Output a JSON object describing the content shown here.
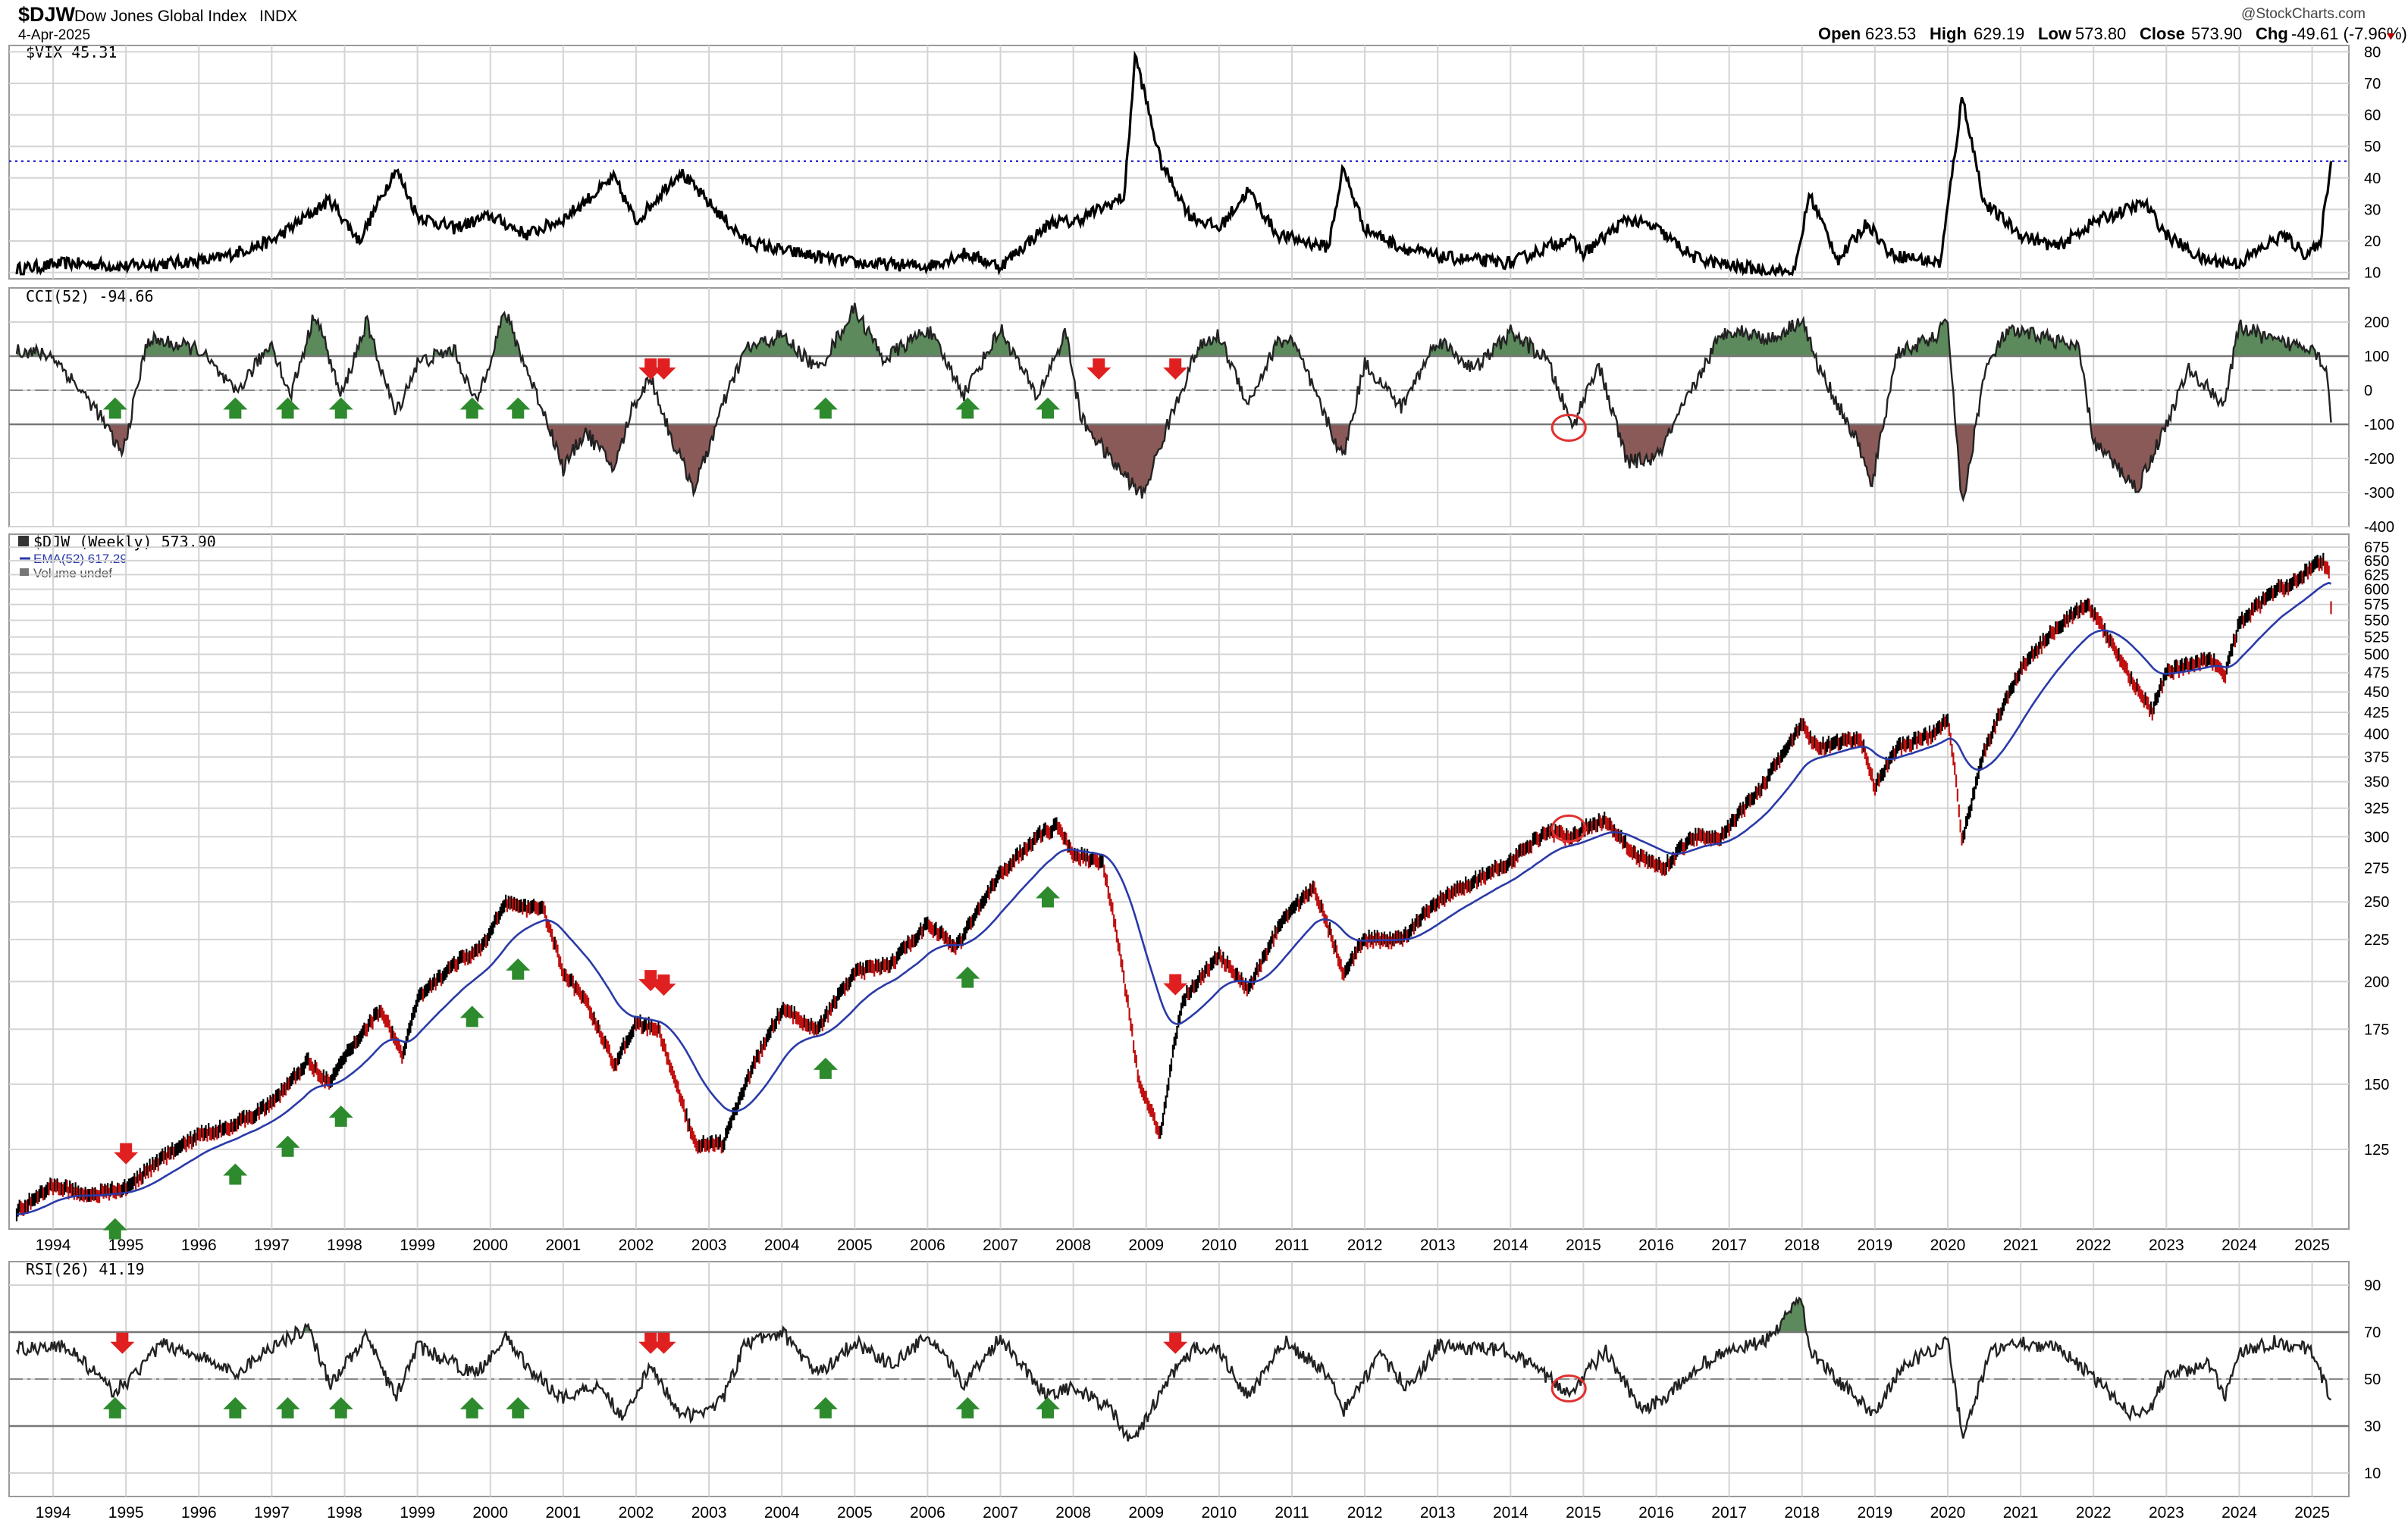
{
  "header": {
    "symbol": "$DJW",
    "name": "Dow Jones Global Index",
    "exchange": "INDX",
    "date": "4-Apr-2025",
    "brand": "@StockCharts.com",
    "quote": {
      "open_label": "Open",
      "open": "623.53",
      "high_label": "High",
      "high": "629.19",
      "low_label": "Low",
      "low": "573.80",
      "close_label": "Close",
      "close": "573.90",
      "chg_label": "Chg",
      "chg": "-49.61 (-7.96%)"
    }
  },
  "colors": {
    "grid": "#d4d4d4",
    "frame": "#9a9a9a",
    "price": "#000000",
    "ema": "#2a3aa8",
    "cci_pos_fill": "#5c8a5c",
    "cci_neg_fill": "#8a5a58",
    "rsi_fill": "#5c8a5c",
    "arrow_up": "#2d8a2d",
    "arrow_down": "#e02020",
    "circle": "#e03030",
    "vix_level": "#3030d0"
  },
  "chart_data": [
    {
      "id": "vix",
      "type": "line",
      "legend": "$VIX 45.31",
      "ylim": [
        8,
        82
      ],
      "yticks": [
        10,
        20,
        30,
        40,
        50,
        60,
        70,
        80
      ],
      "reference_line": 45.31,
      "anchors": [
        [
          1993.5,
          11
        ],
        [
          1994.2,
          13
        ],
        [
          1995.0,
          12
        ],
        [
          1996.2,
          14
        ],
        [
          1997.0,
          20
        ],
        [
          1997.8,
          33
        ],
        [
          1998.2,
          20
        ],
        [
          1998.7,
          43
        ],
        [
          1999.0,
          28
        ],
        [
          1999.5,
          24
        ],
        [
          2000.0,
          28
        ],
        [
          2000.5,
          22
        ],
        [
          2001.0,
          27
        ],
        [
          2001.7,
          40
        ],
        [
          2002.0,
          26
        ],
        [
          2002.6,
          42
        ],
        [
          2003.0,
          32
        ],
        [
          2003.5,
          20
        ],
        [
          2004.0,
          17
        ],
        [
          2005.0,
          13
        ],
        [
          2006.0,
          12
        ],
        [
          2006.5,
          16
        ],
        [
          2007.0,
          12
        ],
        [
          2007.7,
          26
        ],
        [
          2008.0,
          26
        ],
        [
          2008.7,
          34
        ],
        [
          2008.85,
          79
        ],
        [
          2009.2,
          45
        ],
        [
          2009.6,
          28
        ],
        [
          2010.0,
          24
        ],
        [
          2010.4,
          36
        ],
        [
          2010.8,
          22
        ],
        [
          2011.5,
          18
        ],
        [
          2011.7,
          43
        ],
        [
          2012.0,
          24
        ],
        [
          2012.5,
          18
        ],
        [
          2013.0,
          15
        ],
        [
          2014.0,
          13
        ],
        [
          2014.8,
          21
        ],
        [
          2015.0,
          16
        ],
        [
          2015.6,
          27
        ],
        [
          2016.0,
          24
        ],
        [
          2016.5,
          15
        ],
        [
          2017.0,
          12
        ],
        [
          2017.9,
          10
        ],
        [
          2018.1,
          35
        ],
        [
          2018.5,
          14
        ],
        [
          2018.9,
          26
        ],
        [
          2019.2,
          16
        ],
        [
          2019.9,
          13
        ],
        [
          2020.2,
          66
        ],
        [
          2020.5,
          32
        ],
        [
          2021.0,
          22
        ],
        [
          2021.5,
          18
        ],
        [
          2022.0,
          26
        ],
        [
          2022.7,
          32
        ],
        [
          2023.0,
          22
        ],
        [
          2023.5,
          14
        ],
        [
          2024.0,
          13
        ],
        [
          2024.6,
          22
        ],
        [
          2024.9,
          16
        ],
        [
          2025.1,
          18
        ],
        [
          2025.26,
          45.31
        ]
      ]
    },
    {
      "id": "cci",
      "type": "line",
      "legend": "CCI(52) -94.66",
      "ylim": [
        -400,
        300
      ],
      "yticks": [
        200,
        100,
        0,
        -100,
        -200,
        -300,
        -400
      ],
      "overbought": 100,
      "oversold": -100,
      "anchors": [
        [
          1993.5,
          120
        ],
        [
          1994.0,
          100
        ],
        [
          1994.6,
          -60
        ],
        [
          1994.95,
          -190
        ],
        [
          1995.3,
          150
        ],
        [
          1996.0,
          120
        ],
        [
          1996.5,
          -10
        ],
        [
          1997.0,
          140
        ],
        [
          1997.25,
          -20
        ],
        [
          1997.6,
          230
        ],
        [
          1997.95,
          -20
        ],
        [
          1998.3,
          200
        ],
        [
          1998.7,
          -70
        ],
        [
          1999.0,
          80
        ],
        [
          1999.5,
          120
        ],
        [
          1999.8,
          -40
        ],
        [
          2000.2,
          230
        ],
        [
          2000.5,
          60
        ],
        [
          2000.8,
          -100
        ],
        [
          2001.0,
          -230
        ],
        [
          2001.3,
          -120
        ],
        [
          2001.7,
          -230
        ],
        [
          2001.95,
          -50
        ],
        [
          2002.2,
          40
        ],
        [
          2002.5,
          -150
        ],
        [
          2002.8,
          -290
        ],
        [
          2003.2,
          -40
        ],
        [
          2003.5,
          120
        ],
        [
          2004.0,
          160
        ],
        [
          2004.5,
          60
        ],
        [
          2005.0,
          240
        ],
        [
          2005.4,
          90
        ],
        [
          2006.0,
          180
        ],
        [
          2006.5,
          -10
        ],
        [
          2007.0,
          180
        ],
        [
          2007.5,
          -20
        ],
        [
          2007.9,
          170
        ],
        [
          2008.1,
          -80
        ],
        [
          2008.5,
          -200
        ],
        [
          2008.95,
          -310
        ],
        [
          2009.3,
          -100
        ],
        [
          2009.7,
          120
        ],
        [
          2010.0,
          160
        ],
        [
          2010.4,
          -40
        ],
        [
          2010.8,
          140
        ],
        [
          2011.0,
          150
        ],
        [
          2011.7,
          -200
        ],
        [
          2012.0,
          80
        ],
        [
          2012.5,
          -50
        ],
        [
          2013.0,
          150
        ],
        [
          2013.5,
          60
        ],
        [
          2014.0,
          170
        ],
        [
          2014.5,
          90
        ],
        [
          2014.85,
          -110
        ],
        [
          2015.2,
          80
        ],
        [
          2015.6,
          -210
        ],
        [
          2016.0,
          -200
        ],
        [
          2016.3,
          -80
        ],
        [
          2016.8,
          130
        ],
        [
          2017.0,
          180
        ],
        [
          2017.6,
          150
        ],
        [
          2018.0,
          210
        ],
        [
          2018.2,
          80
        ],
        [
          2018.8,
          -170
        ],
        [
          2018.95,
          -290
        ],
        [
          2019.3,
          110
        ],
        [
          2019.8,
          150
        ],
        [
          2020.0,
          200
        ],
        [
          2020.2,
          -350
        ],
        [
          2020.5,
          50
        ],
        [
          2020.8,
          170
        ],
        [
          2021.3,
          160
        ],
        [
          2021.8,
          120
        ],
        [
          2022.0,
          -150
        ],
        [
          2022.6,
          -290
        ],
        [
          2023.0,
          -100
        ],
        [
          2023.3,
          60
        ],
        [
          2023.8,
          -40
        ],
        [
          2024.0,
          190
        ],
        [
          2024.5,
          140
        ],
        [
          2025.0,
          130
        ],
        [
          2025.2,
          60
        ],
        [
          2025.26,
          -94.66
        ]
      ]
    },
    {
      "id": "price",
      "type": "line",
      "legend": "$DJW (Weekly) 573.90",
      "legend_ema": "EMA(52) 617.29",
      "legend_volume": "Volume undef",
      "scale": "log",
      "ylim": [
        100,
        700
      ],
      "yticks": [
        125,
        150,
        175,
        200,
        225,
        250,
        275,
        300,
        325,
        350,
        375,
        400,
        425,
        450,
        475,
        500,
        525,
        550,
        575,
        600,
        625,
        650,
        675
      ],
      "xlim": [
        1993.5,
        2025.4
      ],
      "xticks": [
        "1994",
        "1995",
        "1996",
        "1997",
        "1998",
        "1999",
        "2000",
        "2001",
        "2002",
        "2003",
        "2004",
        "2005",
        "2006",
        "2007",
        "2008",
        "2009",
        "2010",
        "2011",
        "2012",
        "2013",
        "2014",
        "2015",
        "2016",
        "2017",
        "2018",
        "2019",
        "2020",
        "2021",
        "2022",
        "2023",
        "2024",
        "2025"
      ],
      "anchors": [
        [
          1993.5,
          105
        ],
        [
          1994.0,
          113
        ],
        [
          1994.5,
          110
        ],
        [
          1995.0,
          112
        ],
        [
          1995.5,
          122
        ],
        [
          1996.0,
          130
        ],
        [
          1996.5,
          134
        ],
        [
          1997.0,
          142
        ],
        [
          1997.5,
          160
        ],
        [
          1997.8,
          150
        ],
        [
          1998.0,
          162
        ],
        [
          1998.5,
          185
        ],
        [
          1998.8,
          162
        ],
        [
          1999.0,
          190
        ],
        [
          1999.5,
          210
        ],
        [
          1999.9,
          220
        ],
        [
          2000.2,
          250
        ],
        [
          2000.5,
          245
        ],
        [
          2000.7,
          248
        ],
        [
          2001.0,
          205
        ],
        [
          2001.3,
          190
        ],
        [
          2001.7,
          158
        ],
        [
          2002.0,
          178
        ],
        [
          2002.3,
          175
        ],
        [
          2002.6,
          145
        ],
        [
          2002.8,
          127
        ],
        [
          2003.2,
          127
        ],
        [
          2003.5,
          150
        ],
        [
          2004.0,
          185
        ],
        [
          2004.5,
          175
        ],
        [
          2005.0,
          205
        ],
        [
          2005.5,
          210
        ],
        [
          2006.0,
          235
        ],
        [
          2006.4,
          220
        ],
        [
          2007.0,
          270
        ],
        [
          2007.5,
          300
        ],
        [
          2007.8,
          310
        ],
        [
          2008.0,
          285
        ],
        [
          2008.4,
          280
        ],
        [
          2008.7,
          200
        ],
        [
          2008.9,
          150
        ],
        [
          2009.2,
          130
        ],
        [
          2009.5,
          190
        ],
        [
          2010.0,
          215
        ],
        [
          2010.4,
          195
        ],
        [
          2010.9,
          240
        ],
        [
          2011.3,
          260
        ],
        [
          2011.7,
          205
        ],
        [
          2012.0,
          225
        ],
        [
          2012.5,
          225
        ],
        [
          2013.0,
          250
        ],
        [
          2013.5,
          265
        ],
        [
          2014.0,
          280
        ],
        [
          2014.5,
          305
        ],
        [
          2014.8,
          300
        ],
        [
          2015.3,
          315
        ],
        [
          2015.7,
          285
        ],
        [
          2016.1,
          275
        ],
        [
          2016.5,
          300
        ],
        [
          2016.9,
          300
        ],
        [
          2017.5,
          350
        ],
        [
          2018.0,
          410
        ],
        [
          2018.2,
          385
        ],
        [
          2018.8,
          395
        ],
        [
          2019.0,
          345
        ],
        [
          2019.3,
          385
        ],
        [
          2019.8,
          400
        ],
        [
          2020.0,
          420
        ],
        [
          2020.2,
          295
        ],
        [
          2020.5,
          380
        ],
        [
          2021.0,
          480
        ],
        [
          2021.5,
          540
        ],
        [
          2021.9,
          575
        ],
        [
          2022.0,
          560
        ],
        [
          2022.5,
          470
        ],
        [
          2022.8,
          425
        ],
        [
          2023.0,
          475
        ],
        [
          2023.6,
          495
        ],
        [
          2023.8,
          470
        ],
        [
          2024.0,
          545
        ],
        [
          2024.5,
          600
        ],
        [
          2024.7,
          605
        ],
        [
          2025.0,
          640
        ],
        [
          2025.15,
          650
        ],
        [
          2025.24,
          623
        ],
        [
          2025.26,
          573.9
        ]
      ]
    },
    {
      "id": "rsi",
      "type": "line",
      "legend": "RSI(26) 41.19",
      "ylim": [
        0,
        100
      ],
      "yticks": [
        10,
        30,
        50,
        70,
        90
      ],
      "overbought": 70,
      "oversold": 30,
      "anchors": [
        [
          1993.5,
          63
        ],
        [
          1994.2,
          64
        ],
        [
          1994.8,
          45
        ],
        [
          1995.0,
          48
        ],
        [
          1995.5,
          65
        ],
        [
          1996.0,
          60
        ],
        [
          1996.5,
          52
        ],
        [
          1997.0,
          64
        ],
        [
          1997.5,
          72
        ],
        [
          1997.8,
          48
        ],
        [
          1998.3,
          68
        ],
        [
          1998.7,
          42
        ],
        [
          1999.0,
          64
        ],
        [
          1999.8,
          52
        ],
        [
          2000.2,
          68
        ],
        [
          2000.6,
          52
        ],
        [
          2001.0,
          42
        ],
        [
          2001.5,
          48
        ],
        [
          2001.8,
          34
        ],
        [
          2002.2,
          55
        ],
        [
          2002.6,
          36
        ],
        [
          2002.8,
          34
        ],
        [
          2003.2,
          42
        ],
        [
          2003.5,
          65
        ],
        [
          2004.0,
          70
        ],
        [
          2004.5,
          52
        ],
        [
          2005.0,
          66
        ],
        [
          2005.5,
          56
        ],
        [
          2006.0,
          68
        ],
        [
          2006.5,
          48
        ],
        [
          2007.0,
          68
        ],
        [
          2007.6,
          44
        ],
        [
          2008.0,
          46
        ],
        [
          2008.5,
          38
        ],
        [
          2008.8,
          22
        ],
        [
          2009.3,
          50
        ],
        [
          2009.7,
          64
        ],
        [
          2010.0,
          62
        ],
        [
          2010.4,
          42
        ],
        [
          2010.9,
          66
        ],
        [
          2011.5,
          52
        ],
        [
          2011.7,
          36
        ],
        [
          2012.2,
          60
        ],
        [
          2012.6,
          46
        ],
        [
          2013.0,
          64
        ],
        [
          2014.0,
          62
        ],
        [
          2014.8,
          44
        ],
        [
          2015.3,
          62
        ],
        [
          2015.8,
          36
        ],
        [
          2016.2,
          44
        ],
        [
          2016.6,
          56
        ],
        [
          2017.0,
          62
        ],
        [
          2017.5,
          66
        ],
        [
          2018.0,
          84
        ],
        [
          2018.1,
          62
        ],
        [
          2018.8,
          40
        ],
        [
          2019.0,
          36
        ],
        [
          2019.4,
          56
        ],
        [
          2020.0,
          66
        ],
        [
          2020.2,
          26
        ],
        [
          2020.6,
          62
        ],
        [
          2021.0,
          66
        ],
        [
          2021.6,
          62
        ],
        [
          2022.0,
          50
        ],
        [
          2022.5,
          36
        ],
        [
          2022.8,
          38
        ],
        [
          2023.0,
          52
        ],
        [
          2023.6,
          56
        ],
        [
          2023.8,
          42
        ],
        [
          2024.0,
          62
        ],
        [
          2024.5,
          66
        ],
        [
          2025.0,
          62
        ],
        [
          2025.26,
          41.19
        ]
      ]
    }
  ],
  "annotations": {
    "up_arrows_years": [
      1994.85,
      1996.5,
      1997.22,
      1997.95,
      1999.75,
      2000.38,
      2004.6,
      2006.55,
      2007.65
    ],
    "down_arrows_cci_years": [
      2002.2,
      2002.38,
      2008.35,
      2009.4
    ],
    "down_arrows_price_years": [
      1995.0,
      2002.2,
      2002.38,
      2009.4
    ],
    "down_arrows_rsi_years": [
      1994.95,
      2002.2,
      2002.38,
      2009.4
    ],
    "circles_years": [
      2014.8
    ]
  }
}
